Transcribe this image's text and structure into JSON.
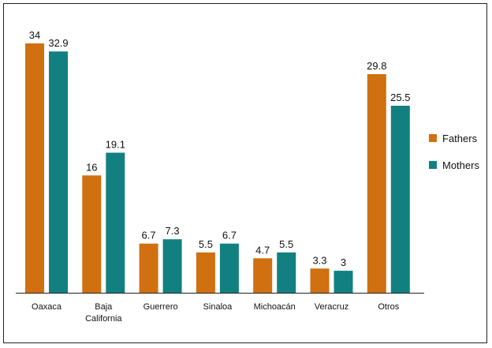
{
  "chart_data": {
    "type": "bar",
    "categories": [
      [
        "Oaxaca"
      ],
      [
        "Baja",
        "California"
      ],
      [
        "Guerrero"
      ],
      [
        "Sinaloa"
      ],
      [
        "Michoacán"
      ],
      [
        "Veracruz"
      ],
      [
        "Otros"
      ]
    ],
    "series": [
      {
        "name": "Fathers",
        "color": "#D07010",
        "values": [
          34,
          16,
          6.7,
          5.5,
          4.7,
          3.3,
          29.8
        ]
      },
      {
        "name": "Mothers",
        "color": "#128080",
        "values": [
          32.9,
          19.1,
          7.3,
          6.7,
          5.5,
          3,
          25.5
        ]
      }
    ],
    "value_labels": [
      [
        "34",
        "16",
        "6.7",
        "5.5",
        "4.7",
        "3.3",
        "29.8"
      ],
      [
        "32.9",
        "19.1",
        "7.3",
        "6.7",
        "5.5",
        "3",
        "25.5"
      ]
    ],
    "ylim": [
      0,
      34
    ],
    "grid": false,
    "legend": "right"
  }
}
